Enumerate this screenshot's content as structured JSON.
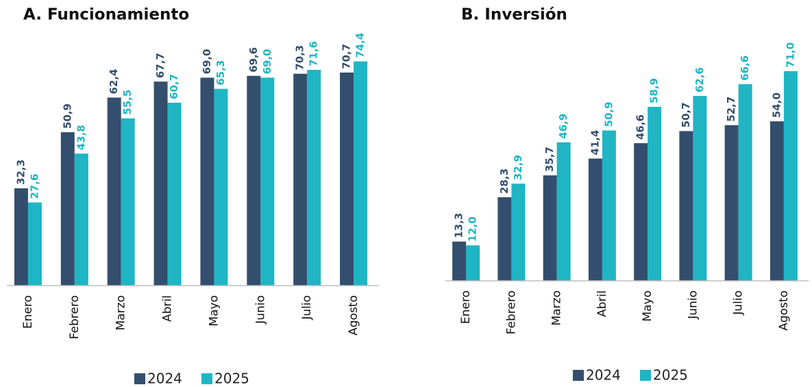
{
  "chart_data": [
    {
      "type": "bar",
      "title": "A.  Funcionamiento",
      "categories": [
        "Enero",
        "Febrero",
        "Marzo",
        "Abril",
        "Mayo",
        "Junio",
        "Julio",
        "Agosto"
      ],
      "series": [
        {
          "name": "2024",
          "color": "#344e6e",
          "values": [
            32.3,
            50.9,
            62.4,
            67.7,
            69.0,
            69.6,
            70.3,
            70.7
          ],
          "value_labels": [
            "32,3",
            "50,9",
            "62,4",
            "67,7",
            "69,0",
            "69,6",
            "70,3",
            "70,7"
          ]
        },
        {
          "name": "2025",
          "color": "#1fb5c4",
          "values": [
            27.6,
            43.8,
            55.5,
            60.7,
            65.3,
            69.0,
            71.6,
            74.4
          ],
          "value_labels": [
            "27,6",
            "43,8",
            "55,5",
            "60,7",
            "65,3",
            "69,0",
            "71,6",
            "74,4"
          ]
        }
      ],
      "ylim": [
        0,
        80
      ]
    },
    {
      "type": "bar",
      "title": "B.  Inversión",
      "categories": [
        "Enero",
        "Febrero",
        "Marzo",
        "Abril",
        "Mayo",
        "Junio",
        "Julio",
        "Agosto"
      ],
      "series": [
        {
          "name": "2024",
          "color": "#344e6e",
          "values": [
            13.3,
            28.3,
            35.7,
            41.4,
            46.6,
            50.7,
            52.7,
            54.0
          ],
          "value_labels": [
            "13,3",
            "28,3",
            "35,7",
            "41,4",
            "46,6",
            "50,7",
            "52,7",
            "54,0"
          ]
        },
        {
          "name": "2025",
          "color": "#1fb5c4",
          "values": [
            12.0,
            32.9,
            46.9,
            50.9,
            58.9,
            62.6,
            66.6,
            71.0
          ],
          "value_labels": [
            "12,0",
            "32,9",
            "46,9",
            "50,9",
            "58,9",
            "62,6",
            "66,6",
            "71,0"
          ]
        }
      ],
      "ylim": [
        0,
        80
      ]
    }
  ]
}
